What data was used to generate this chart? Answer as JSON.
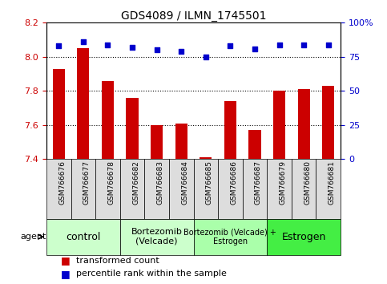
{
  "title": "GDS4089 / ILMN_1745501",
  "samples": [
    "GSM766676",
    "GSM766677",
    "GSM766678",
    "GSM766682",
    "GSM766683",
    "GSM766684",
    "GSM766685",
    "GSM766686",
    "GSM766687",
    "GSM766679",
    "GSM766680",
    "GSM766681"
  ],
  "transformed_count": [
    7.93,
    8.05,
    7.86,
    7.76,
    7.6,
    7.61,
    7.41,
    7.74,
    7.57,
    7.8,
    7.81,
    7.83
  ],
  "percentile_rank": [
    83,
    86,
    84,
    82,
    80,
    79,
    75,
    83,
    81,
    84,
    84,
    84
  ],
  "left_ylim": [
    7.4,
    8.2
  ],
  "left_yticks": [
    7.4,
    7.6,
    7.8,
    8.0,
    8.2
  ],
  "right_ylim": [
    0,
    100
  ],
  "right_yticks": [
    0,
    25,
    50,
    75,
    100
  ],
  "right_yticklabels": [
    "0",
    "25",
    "50",
    "75",
    "100%"
  ],
  "bar_color": "#cc0000",
  "dot_color": "#0000cc",
  "bar_bottom": 7.4,
  "groups": [
    {
      "label": "control",
      "start": 0,
      "end": 3,
      "color": "#ccffcc",
      "fontsize": 9
    },
    {
      "label": "Bortezomib\n(Velcade)",
      "start": 3,
      "end": 6,
      "color": "#ccffcc",
      "fontsize": 8
    },
    {
      "label": "Bortezomib (Velcade) +\nEstrogen",
      "start": 6,
      "end": 9,
      "color": "#aaffaa",
      "fontsize": 7
    },
    {
      "label": "Estrogen",
      "start": 9,
      "end": 12,
      "color": "#44ee44",
      "fontsize": 9
    }
  ],
  "legend_items": [
    {
      "color": "#cc0000",
      "label": "transformed count"
    },
    {
      "color": "#0000cc",
      "label": "percentile rank within the sample"
    }
  ],
  "agent_label": "agent",
  "tick_label_color": "#cc0000",
  "right_tick_color": "#0000cc",
  "bg_color": "#ffffff",
  "sample_box_color": "#dddddd",
  "dotted_line_color": "#000000"
}
